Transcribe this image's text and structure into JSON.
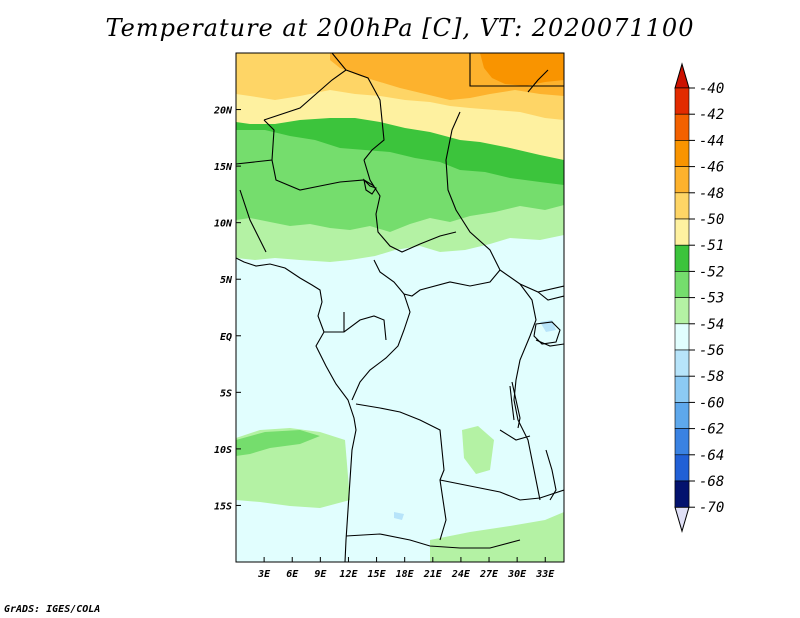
{
  "title": "Temperature at 200hPa [C], VT: 2020071100",
  "footer": "GrADS: IGES/COLA",
  "map": {
    "lon_range": [
      0,
      35
    ],
    "lat_range": [
      -20,
      25
    ],
    "x_ticks": [
      "3E",
      "6E",
      "9E",
      "12E",
      "15E",
      "18E",
      "21E",
      "24E",
      "27E",
      "30E",
      "33E"
    ],
    "x_tick_values": [
      3,
      6,
      9,
      12,
      15,
      18,
      21,
      24,
      27,
      30,
      33
    ],
    "y_ticks": [
      "20N",
      "15N",
      "10N",
      "5N",
      "EQ",
      "5S",
      "10S",
      "15S"
    ],
    "y_tick_values": [
      20,
      15,
      10,
      5,
      0,
      -5,
      -10,
      -15
    ]
  },
  "colorbar": {
    "labels": [
      "-40",
      "-42",
      "-44",
      "-46",
      "-48",
      "-50",
      "-51",
      "-52",
      "-53",
      "-54",
      "-56",
      "-58",
      "-60",
      "-62",
      "-64",
      "-68",
      "-70"
    ],
    "colors": [
      "#e22b00",
      "#f36100",
      "#f99400",
      "#fdb22d",
      "#fed566",
      "#fef1a0",
      "#3cc43c",
      "#75dd6d",
      "#b4f2a4",
      "#e1fefe",
      "#b7e4fa",
      "#8ccaf4",
      "#5ea8ec",
      "#3a82e2",
      "#2160d6",
      "#0a3cb4",
      "#03126e"
    ],
    "top_color": "#cc1100",
    "bottom_color": "#e0e0f6"
  }
}
